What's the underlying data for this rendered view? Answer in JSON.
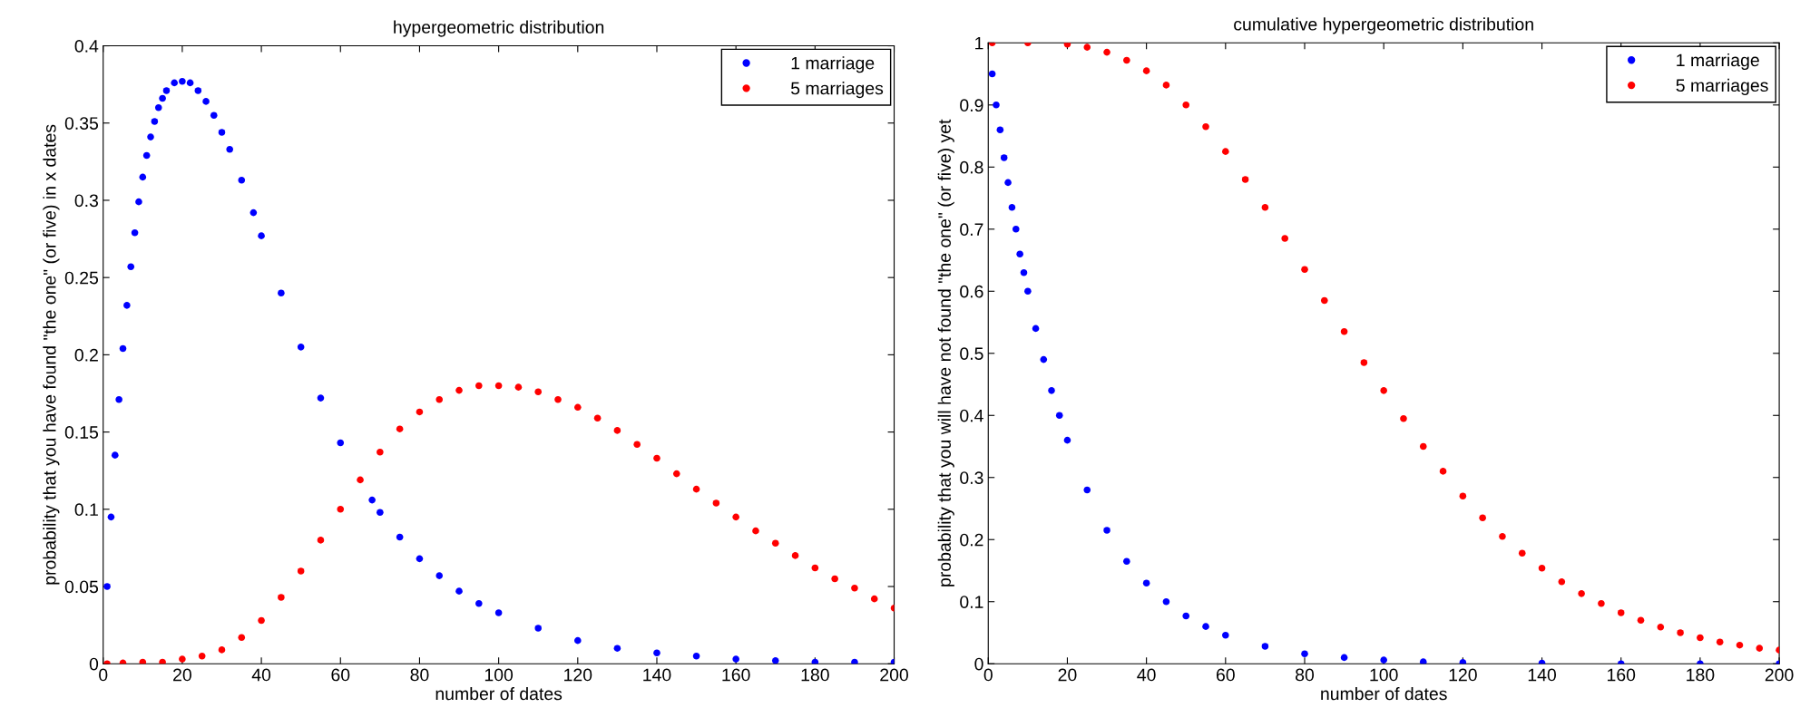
{
  "chart_data": [
    {
      "type": "scatter",
      "title": "hypergeometric distribution",
      "xlabel": "number of dates",
      "ylabel": "probability that you have found \"the one\" (or five) in x dates",
      "xlim": [
        0,
        200
      ],
      "xticks": [
        0,
        20,
        40,
        60,
        80,
        100,
        120,
        140,
        160,
        180,
        200
      ],
      "ylim": [
        0,
        0.4
      ],
      "yticks": [
        0,
        0.05,
        0.1,
        0.15,
        0.2,
        0.25,
        0.3,
        0.35,
        0.4
      ],
      "legend": "top right",
      "marker": "circle",
      "grid": false,
      "series": [
        {
          "name": "1 marriage",
          "color": "#0000ff",
          "x": [
            1,
            2,
            3,
            4,
            5,
            6,
            7,
            8,
            9,
            10,
            11,
            12,
            13,
            14,
            15,
            16,
            18,
            20,
            22,
            24,
            26,
            28,
            30,
            32,
            35,
            38,
            40,
            45,
            50,
            55,
            60,
            68,
            70,
            75,
            80,
            85,
            90,
            95,
            100,
            110,
            120,
            130,
            140,
            150,
            160,
            170,
            180,
            190,
            200
          ],
          "values": [
            0.05,
            0.095,
            0.135,
            0.171,
            0.204,
            0.232,
            0.257,
            0.279,
            0.299,
            0.315,
            0.329,
            0.341,
            0.351,
            0.36,
            0.366,
            0.371,
            0.376,
            0.377,
            0.376,
            0.371,
            0.364,
            0.355,
            0.344,
            0.333,
            0.313,
            0.292,
            0.277,
            0.24,
            0.205,
            0.172,
            0.143,
            0.106,
            0.098,
            0.082,
            0.068,
            0.057,
            0.047,
            0.039,
            0.033,
            0.023,
            0.015,
            0.01,
            0.007,
            0.005,
            0.003,
            0.002,
            0.001,
            0.001,
            0.001
          ]
        },
        {
          "name": "5 marriages",
          "color": "#ff0000",
          "x": [
            1,
            5,
            10,
            15,
            20,
            25,
            30,
            35,
            40,
            45,
            50,
            55,
            60,
            65,
            70,
            75,
            80,
            85,
            90,
            95,
            100,
            105,
            110,
            115,
            120,
            125,
            130,
            135,
            140,
            145,
            150,
            155,
            160,
            165,
            170,
            175,
            180,
            185,
            190,
            195,
            200
          ],
          "values": [
            0,
            0.0005,
            0.001,
            0.001,
            0.003,
            0.005,
            0.009,
            0.017,
            0.028,
            0.043,
            0.06,
            0.08,
            0.1,
            0.119,
            0.137,
            0.152,
            0.163,
            0.171,
            0.177,
            0.18,
            0.18,
            0.179,
            0.176,
            0.171,
            0.166,
            0.159,
            0.151,
            0.142,
            0.133,
            0.123,
            0.113,
            0.104,
            0.095,
            0.086,
            0.078,
            0.07,
            0.062,
            0.055,
            0.049,
            0.042,
            0.036
          ]
        }
      ]
    },
    {
      "type": "scatter",
      "title": "cumulative hypergeometric distribution",
      "xlabel": "number of dates",
      "ylabel": "probability that you will have not found \"the one\" (or five) yet",
      "xlim": [
        0,
        200
      ],
      "xticks": [
        0,
        20,
        40,
        60,
        80,
        100,
        120,
        140,
        160,
        180,
        200
      ],
      "ylim": [
        0,
        1
      ],
      "yticks": [
        0,
        0.1,
        0.2,
        0.3,
        0.4,
        0.5,
        0.6,
        0.7,
        0.8,
        0.9,
        1
      ],
      "legend": "top right",
      "marker": "circle",
      "grid": false,
      "series": [
        {
          "name": "1 marriage",
          "color": "#0000ff",
          "x": [
            1,
            2,
            3,
            4,
            5,
            6,
            7,
            8,
            9,
            10,
            12,
            14,
            16,
            18,
            20,
            25,
            30,
            35,
            40,
            45,
            50,
            55,
            60,
            70,
            80,
            90,
            100,
            110,
            120,
            140,
            160,
            180,
            200
          ],
          "values": [
            0.95,
            0.9,
            0.86,
            0.815,
            0.775,
            0.735,
            0.7,
            0.66,
            0.63,
            0.6,
            0.54,
            0.49,
            0.44,
            0.4,
            0.36,
            0.28,
            0.215,
            0.165,
            0.13,
            0.1,
            0.077,
            0.06,
            0.046,
            0.028,
            0.016,
            0.01,
            0.006,
            0.003,
            0.002,
            0.001,
            0,
            0,
            0
          ]
        },
        {
          "name": "5 marriages",
          "color": "#ff0000",
          "x": [
            1,
            10,
            20,
            25,
            30,
            35,
            40,
            45,
            50,
            55,
            60,
            65,
            70,
            75,
            80,
            85,
            90,
            95,
            100,
            105,
            110,
            115,
            120,
            125,
            130,
            135,
            140,
            145,
            150,
            155,
            160,
            165,
            170,
            175,
            180,
            185,
            190,
            195,
            200
          ],
          "values": [
            1,
            1,
            0.998,
            0.993,
            0.985,
            0.972,
            0.955,
            0.932,
            0.9,
            0.865,
            0.825,
            0.78,
            0.735,
            0.685,
            0.635,
            0.585,
            0.535,
            0.485,
            0.44,
            0.395,
            0.35,
            0.31,
            0.27,
            0.235,
            0.205,
            0.178,
            0.154,
            0.132,
            0.113,
            0.097,
            0.082,
            0.07,
            0.059,
            0.05,
            0.042,
            0.035,
            0.03,
            0.025,
            0.022
          ]
        }
      ]
    }
  ]
}
